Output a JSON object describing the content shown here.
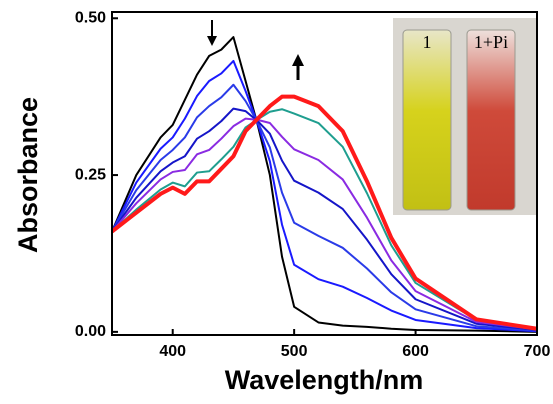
{
  "chart_data": {
    "type": "line",
    "x_label": "Wavelength/nm",
    "y_label": "Absorbance",
    "inset_labels": [
      "1",
      "1+Pi"
    ],
    "x": [
      350,
      370,
      390,
      400,
      410,
      420,
      430,
      440,
      450,
      460,
      470,
      480,
      490,
      500,
      520,
      540,
      560,
      580,
      600,
      650,
      700
    ],
    "series": [
      {
        "color": "#000000",
        "values": [
          0.16,
          0.25,
          0.31,
          0.33,
          0.37,
          0.41,
          0.44,
          0.45,
          0.47,
          0.4,
          0.33,
          0.25,
          0.12,
          0.04,
          0.015,
          0.01,
          0.008,
          0.005,
          0.003,
          0.002,
          0
        ]
      },
      {
        "color": "#1a1aff",
        "values": [
          0.16,
          0.238,
          0.292,
          0.31,
          0.34,
          0.376,
          0.4,
          0.412,
          0.432,
          0.384,
          0.332,
          0.272,
          0.171,
          0.107,
          0.084,
          0.072,
          0.054,
          0.034,
          0.019,
          0.006,
          0.001
        ]
      },
      {
        "color": "#2a3be8",
        "values": [
          0.16,
          0.226,
          0.274,
          0.29,
          0.31,
          0.342,
          0.36,
          0.374,
          0.394,
          0.368,
          0.334,
          0.294,
          0.222,
          0.174,
          0.153,
          0.134,
          0.101,
          0.063,
          0.036,
          0.009,
          0.002
        ]
      },
      {
        "color": "#1515c8",
        "values": [
          0.16,
          0.214,
          0.256,
          0.27,
          0.28,
          0.308,
          0.32,
          0.336,
          0.356,
          0.352,
          0.336,
          0.316,
          0.273,
          0.241,
          0.222,
          0.196,
          0.147,
          0.092,
          0.052,
          0.013,
          0.003
        ]
      },
      {
        "color": "#8a2be2",
        "values": [
          0.16,
          0.205,
          0.243,
          0.255,
          0.258,
          0.283,
          0.29,
          0.308,
          0.328,
          0.34,
          0.338,
          0.333,
          0.311,
          0.291,
          0.274,
          0.243,
          0.182,
          0.114,
          0.065,
          0.016,
          0.004
        ]
      },
      {
        "color": "#1f9e8f",
        "values": [
          0.16,
          0.195,
          0.227,
          0.238,
          0.232,
          0.254,
          0.256,
          0.275,
          0.295,
          0.326,
          0.339,
          0.351,
          0.355,
          0.348,
          0.333,
          0.295,
          0.221,
          0.138,
          0.078,
          0.019,
          0.005
        ]
      },
      {
        "color": "#ff1a1a",
        "values": [
          0.16,
          0.19,
          0.22,
          0.23,
          0.22,
          0.24,
          0.24,
          0.26,
          0.28,
          0.32,
          0.34,
          0.36,
          0.375,
          0.375,
          0.36,
          0.32,
          0.24,
          0.15,
          0.085,
          0.02,
          0.005
        ]
      }
    ],
    "xlim": [
      350,
      700
    ],
    "xticks": [
      400,
      500,
      600,
      700
    ],
    "ylim": [
      -0.005,
      0.51
    ],
    "yticks": [
      {
        "value": 0,
        "label": "0.00"
      },
      {
        "value": 0.25,
        "label": "0.25"
      },
      {
        "value": 0.5,
        "label": "0.50"
      }
    ]
  }
}
